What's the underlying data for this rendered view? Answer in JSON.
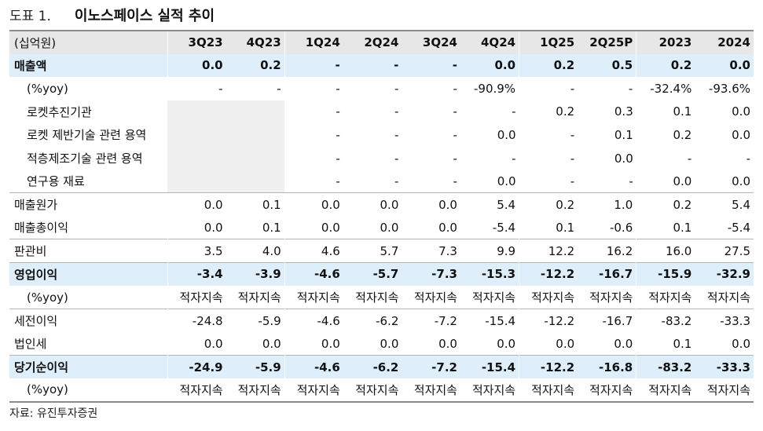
{
  "figure": {
    "label": "도표 1.",
    "title": "이노스페이스 실적 추이"
  },
  "table": {
    "unit_header": "(십억원)",
    "columns": [
      "3Q23",
      "4Q23",
      "1Q24",
      "2Q24",
      "3Q24",
      "4Q24",
      "1Q25",
      "2Q25P",
      "2023",
      "2024"
    ],
    "rows": [
      {
        "label": "매출액",
        "values": [
          "0.0",
          "0.2",
          "-",
          "-",
          "-",
          "0.0",
          "0.2",
          "0.5",
          "0.2",
          "0.0"
        ]
      },
      {
        "label": "(%yoy)",
        "values": [
          "-",
          "-",
          "-",
          "-",
          "-",
          "-90.9%",
          "-",
          "-",
          "-32.4%",
          "-93.6%"
        ]
      },
      {
        "label": "로켓추진기관",
        "values": [
          "",
          "",
          "-",
          "-",
          "-",
          "-",
          "0.2",
          "0.3",
          "0.1",
          "0.0"
        ]
      },
      {
        "label": "로켓 제반기술 관련 용역",
        "values": [
          "",
          "",
          "-",
          "-",
          "-",
          "0.0",
          "-",
          "0.1",
          "0.2",
          "0.0"
        ]
      },
      {
        "label": "적층제조기술 관련 용역",
        "values": [
          "",
          "",
          "-",
          "-",
          "-",
          "-",
          "-",
          "0.0",
          "-",
          "-"
        ]
      },
      {
        "label": "연구용 재료",
        "values": [
          "",
          "",
          "-",
          "-",
          "-",
          "0.0",
          "-",
          "-",
          "0.0",
          "0.0"
        ]
      },
      {
        "label": "매출원가",
        "values": [
          "0.0",
          "0.1",
          "0.0",
          "0.0",
          "0.0",
          "5.4",
          "0.2",
          "1.0",
          "0.2",
          "5.4"
        ]
      },
      {
        "label": "매출총이익",
        "values": [
          "0.0",
          "0.1",
          "0.0",
          "0.0",
          "0.0",
          "-5.4",
          "0.1",
          "-0.6",
          "0.1",
          "-5.4"
        ]
      },
      {
        "label": "판관비",
        "values": [
          "3.5",
          "4.0",
          "4.6",
          "5.7",
          "7.3",
          "9.9",
          "12.2",
          "16.2",
          "16.0",
          "27.5"
        ]
      },
      {
        "label": "영업이익",
        "values": [
          "-3.4",
          "-3.9",
          "-4.6",
          "-5.7",
          "-7.3",
          "-15.3",
          "-12.2",
          "-16.7",
          "-15.9",
          "-32.9"
        ]
      },
      {
        "label": "(%yoy)",
        "values": [
          "적자지속",
          "적자지속",
          "적자지속",
          "적자지속",
          "적자지속",
          "적자지속",
          "적자지속",
          "적자지속",
          "적자지속",
          "적자지속"
        ]
      },
      {
        "label": "세전이익",
        "values": [
          "-24.8",
          "-5.9",
          "-4.6",
          "-6.2",
          "-7.2",
          "-15.4",
          "-12.2",
          "-16.7",
          "-83.2",
          "-33.3"
        ]
      },
      {
        "label": "법인세",
        "values": [
          "0.0",
          "0.0",
          "0.0",
          "0.0",
          "0.0",
          "0.0",
          "0.0",
          "0.0",
          "0.1",
          "0.0"
        ]
      },
      {
        "label": "당기순이익",
        "values": [
          "-24.9",
          "-5.9",
          "-4.6",
          "-6.2",
          "-7.2",
          "-15.4",
          "-12.2",
          "-16.8",
          "-83.2",
          "-33.3"
        ]
      },
      {
        "label": "(%yoy)",
        "values": [
          "적자지속",
          "적자지속",
          "적자지속",
          "적자지속",
          "적자지속",
          "적자지속",
          "적자지속",
          "적자지속",
          "적자지속",
          "적자지속"
        ]
      }
    ]
  },
  "source": "자료: 유진투자증권",
  "colors": {
    "header_bg": "#e7e7e7",
    "highlight_bg": "#dfeefb",
    "empty_cell_bg": "#f0f0f0"
  }
}
